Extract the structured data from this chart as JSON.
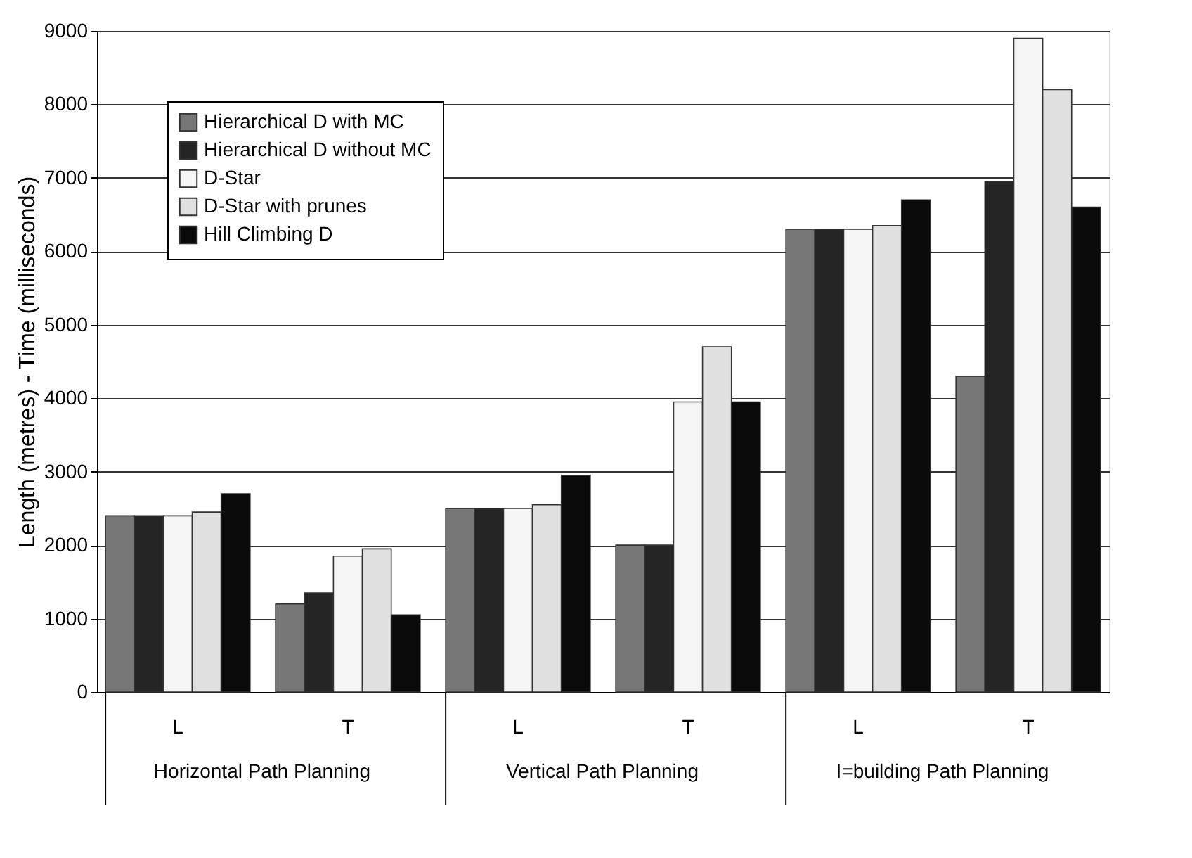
{
  "chart_data": {
    "type": "bar",
    "ylabel": "Length (metres) - Time (milliseconds)",
    "categories": [
      "L",
      "T",
      "L",
      "T",
      "L",
      "T"
    ],
    "annotations": [
      "Horizontal Path Planning",
      "Vertical Path Planning",
      "I=building Path Planning"
    ],
    "series": [
      {
        "name": "Hierarchical D with MC",
        "color": "#777777",
        "values": [
          2400,
          1200,
          2500,
          2000,
          6300,
          4300
        ]
      },
      {
        "name": "Hierarchical D without MC",
        "color": "#252525",
        "values": [
          2400,
          1350,
          2500,
          2000,
          6300,
          6950
        ]
      },
      {
        "name": "D-Star",
        "color": "#f5f5f5",
        "values": [
          2400,
          1850,
          2500,
          3950,
          6300,
          8900
        ]
      },
      {
        "name": "D-Star with prunes",
        "color": "#e0e0e0",
        "values": [
          2450,
          1950,
          2550,
          4700,
          6350,
          8200
        ]
      },
      {
        "name": "Hill Climbing D",
        "color": "#0a0a0a",
        "values": [
          2700,
          1050,
          2950,
          3950,
          6700,
          6600
        ]
      }
    ],
    "ylim": [
      0,
      9000
    ],
    "yticks": [
      0,
      1000,
      2000,
      3000,
      4000,
      5000,
      6000,
      7000,
      8000,
      9000
    ],
    "grid": "y",
    "legend": "top left"
  }
}
